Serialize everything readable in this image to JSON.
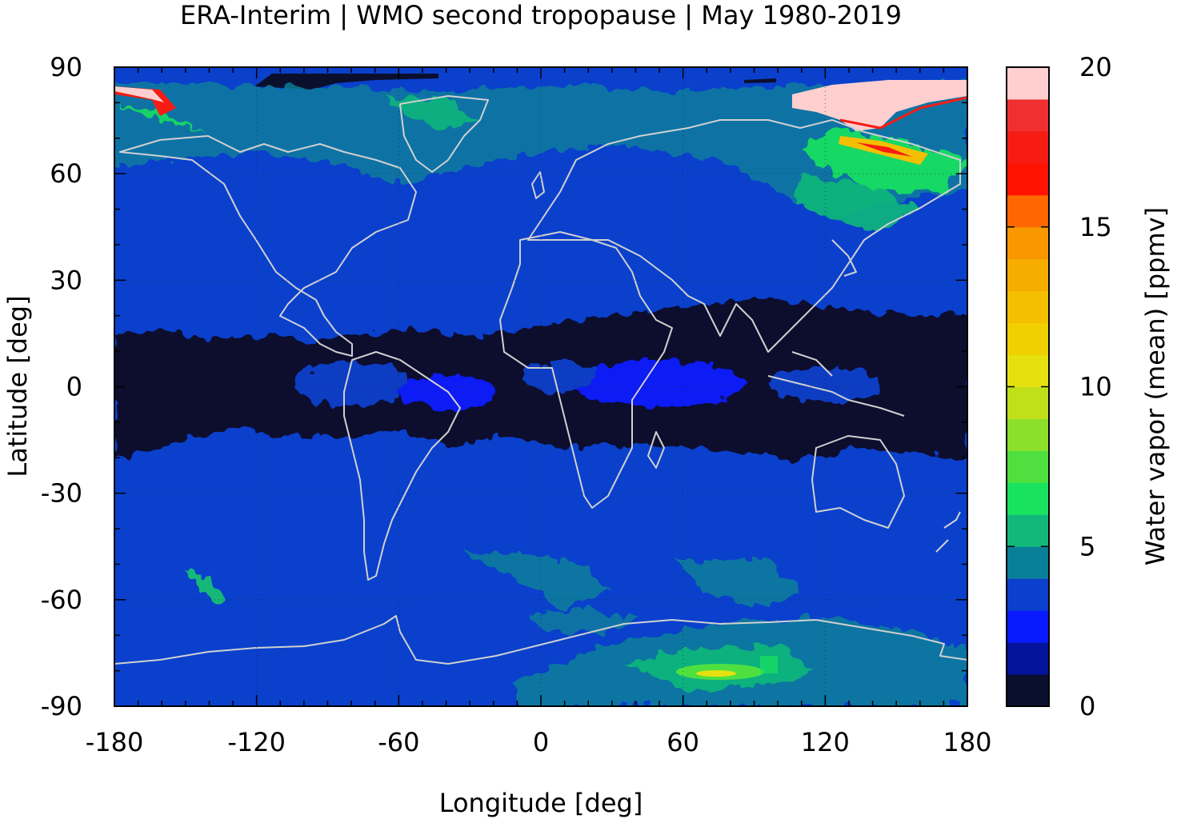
{
  "chart_data": {
    "type": "heatmap",
    "title": "ERA-Interim | WMO second tropopause | May 1980-2019",
    "xlabel": "Longitude [deg]",
    "ylabel": "Latitude [deg]",
    "xlim": [
      -180,
      180
    ],
    "ylim": [
      -90,
      90
    ],
    "x_ticks": [
      "-180",
      "-120",
      "-60",
      "0",
      "60",
      "120",
      "180"
    ],
    "y_ticks": [
      "90",
      "60",
      "30",
      "0",
      "-30",
      "-60",
      "-90"
    ],
    "grid": true,
    "colorbar": {
      "label": "Water vapor (mean) [ppmv]",
      "range": [
        0,
        20
      ],
      "ticks": [
        "0",
        "5",
        "10",
        "15",
        "20"
      ],
      "step": 1,
      "colors": [
        "#0b0f2e",
        "#03139a",
        "#0a1aff",
        "#0a40cc",
        "#0a7f9a",
        "#12b87a",
        "#19e35e",
        "#4fe040",
        "#8ce02c",
        "#c0e019",
        "#e6e010",
        "#f0d000",
        "#f4bf00",
        "#f6ad00",
        "#f89700",
        "#ff6800",
        "#ff1200",
        "#f61c14",
        "#f03030",
        "#f28080"
      ],
      "top_color": "#ffcfcf"
    },
    "background_level": "3-4",
    "regions": [
      {
        "name": "tropical dry band",
        "lon": [
          -180,
          180
        ],
        "lat": [
          -20,
          22
        ],
        "level": "0-1"
      },
      {
        "name": "equatorial patches",
        "lon": [
          -170,
          170
        ],
        "lat": [
          -8,
          8
        ],
        "level": "2-3"
      },
      {
        "name": "northeast Asia moist plume",
        "lon": [
          100,
          180
        ],
        "lat": [
          60,
          85
        ],
        "level": "15-20"
      },
      {
        "name": "Arctic dry cap",
        "lon": [
          -120,
          -50
        ],
        "lat": [
          85,
          90
        ],
        "level": "0-1"
      },
      {
        "name": "Antarctic plateau maximum",
        "lon": [
          60,
          100
        ],
        "lat": [
          -85,
          -75
        ],
        "level": "7-9"
      },
      {
        "name": "Southern Ocean moist band",
        "lon": [
          -20,
          120
        ],
        "lat": [
          -75,
          -55
        ],
        "level": "4-6"
      }
    ]
  }
}
